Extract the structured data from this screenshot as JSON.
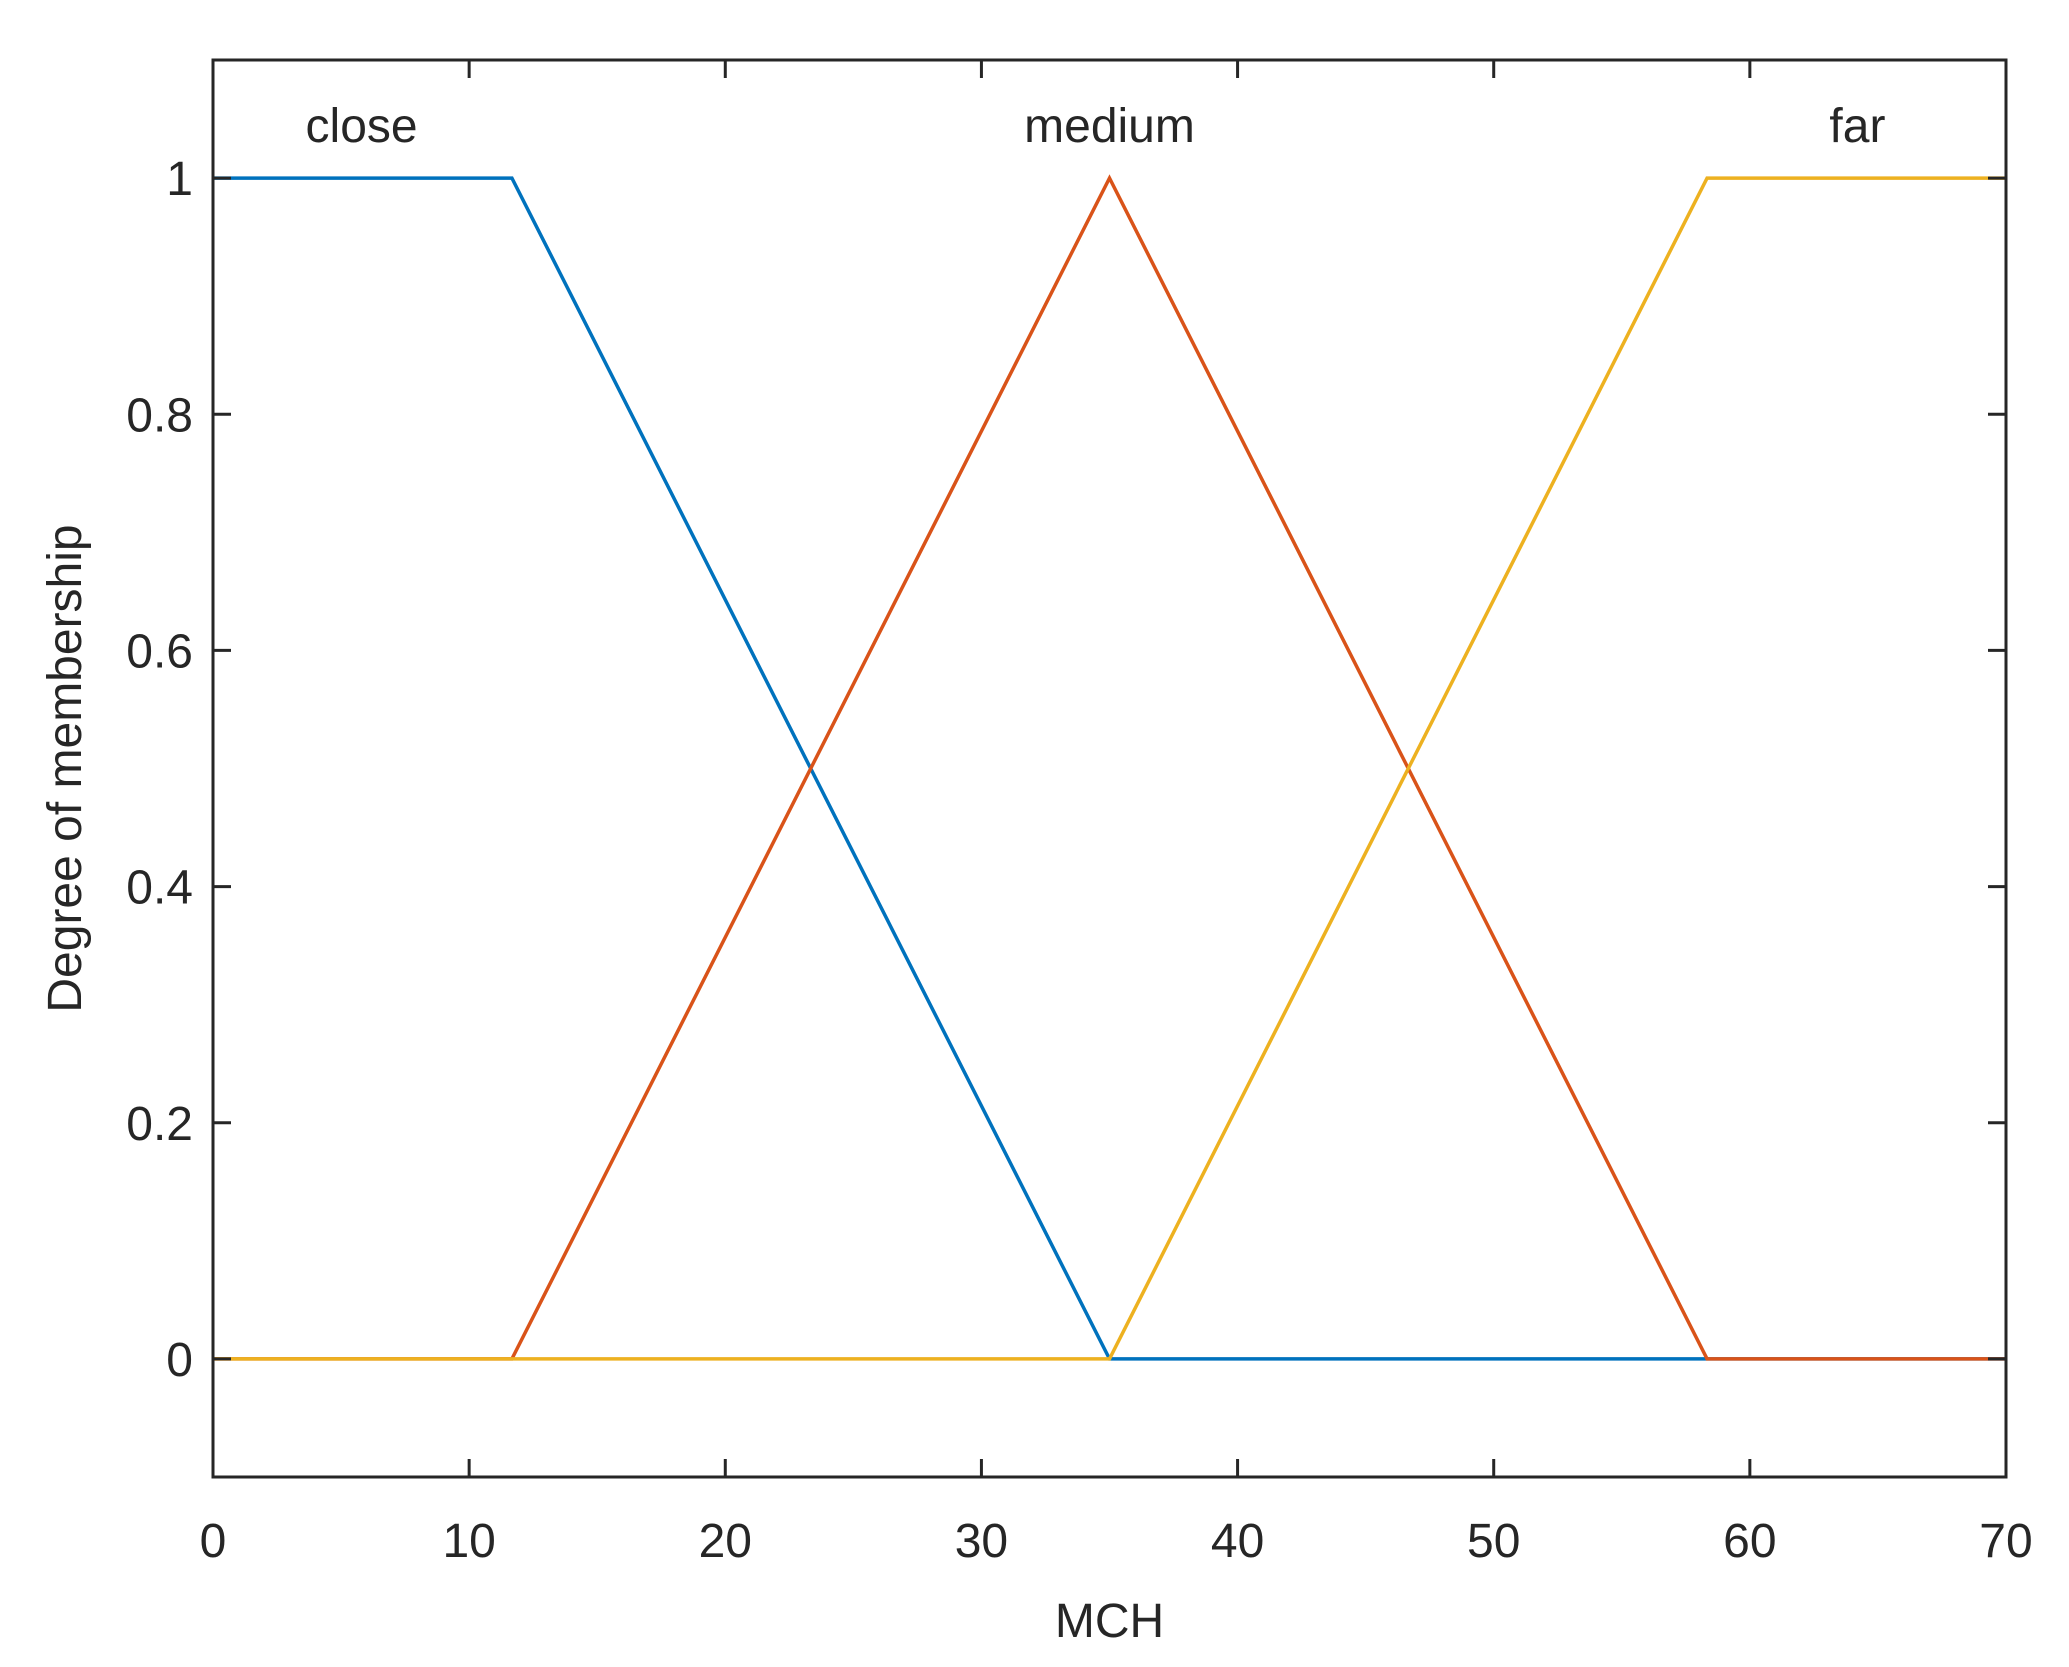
{
  "chart_data": {
    "type": "line",
    "title": "",
    "xlabel": "MCH",
    "ylabel": "Degree of membership",
    "xlim": [
      0,
      70
    ],
    "ylim": [
      -0.1,
      1.1
    ],
    "xticks": [
      "0",
      "10",
      "20",
      "30",
      "40",
      "50",
      "60",
      "70"
    ],
    "yticks": [
      "0",
      "0.2",
      "0.4",
      "0.6",
      "0.8",
      "1"
    ],
    "grid": false,
    "legend": "none",
    "series": [
      {
        "name": "close",
        "color": "#0072BD",
        "x": [
          0,
          11.67,
          35,
          70
        ],
        "y": [
          1,
          1,
          0,
          0
        ]
      },
      {
        "name": "medium",
        "color": "#D95319",
        "x": [
          0,
          11.67,
          35,
          58.33,
          70
        ],
        "y": [
          0,
          0,
          1,
          0,
          0
        ]
      },
      {
        "name": "far",
        "color": "#EDB120",
        "x": [
          0,
          35,
          58.33,
          70
        ],
        "y": [
          0,
          0,
          1,
          1
        ]
      }
    ],
    "annotations": [
      {
        "text": "close",
        "x": 5.8,
        "y": 1.045
      },
      {
        "text": "medium",
        "x": 35,
        "y": 1.045
      },
      {
        "text": "far",
        "x": 64.2,
        "y": 1.045
      }
    ]
  }
}
